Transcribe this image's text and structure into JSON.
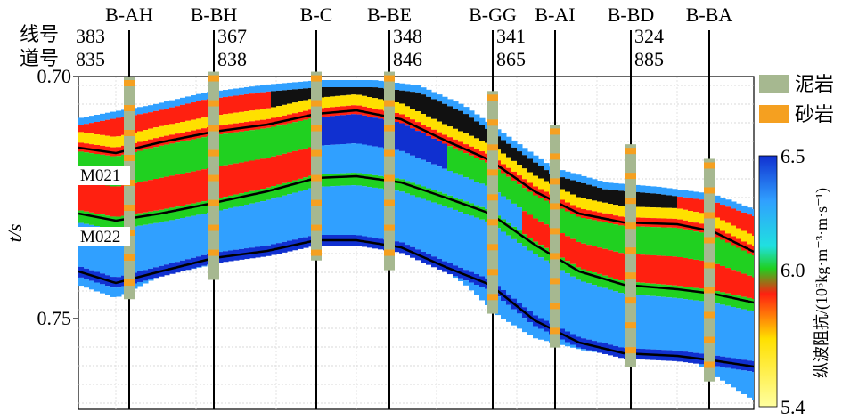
{
  "chart_data": {
    "type": "heatmap",
    "title": "",
    "ylabel": "t/s",
    "y_ticks": [
      {
        "value": 0.7,
        "label": "0.70"
      },
      {
        "value": 0.75,
        "label": "0.75"
      }
    ],
    "ylim": [
      0.7,
      0.77
    ],
    "header_rows": {
      "line_label": "线号",
      "trace_label": "道号"
    },
    "wells": [
      {
        "name": "B-AH",
        "line": "383",
        "trace": "835",
        "top": 0.7,
        "bottom": 0.746
      },
      {
        "name": "B-BH",
        "line": "367",
        "trace": "838",
        "top": 0.699,
        "bottom": 0.742
      },
      {
        "name": "B-C",
        "line": "",
        "trace": "",
        "top": 0.699,
        "bottom": 0.738
      },
      {
        "name": "B-BE",
        "line": "348",
        "trace": "846",
        "top": 0.699,
        "bottom": 0.74
      },
      {
        "name": "B-GG",
        "line": "341",
        "trace": "865",
        "top": 0.703,
        "bottom": 0.749
      },
      {
        "name": "B-AI",
        "line": "",
        "trace": "",
        "top": 0.71,
        "bottom": 0.756
      },
      {
        "name": "B-BD",
        "line": "324",
        "trace": "885",
        "top": 0.714,
        "bottom": 0.76
      },
      {
        "name": "B-BA",
        "line": "",
        "trace": "",
        "top": 0.717,
        "bottom": 0.763
      }
    ],
    "horizons": [
      {
        "name": "M021",
        "label": "M021"
      },
      {
        "name": "M022",
        "label": "M022"
      }
    ],
    "lithology_legend": [
      {
        "name": "泥岩",
        "color": "#a6b890"
      },
      {
        "name": "砂岩",
        "color": "#f5a020"
      }
    ],
    "colorbar": {
      "label": "纵波阻抗/(10⁶kg·m⁻³·m·s⁻¹)",
      "min": 5.4,
      "max": 6.5,
      "ticks": [
        {
          "value": 6.5,
          "label": "6.5"
        },
        {
          "value": 6.0,
          "label": "6.0"
        },
        {
          "value": 5.4,
          "label": "5.4"
        }
      ],
      "stops": [
        {
          "value": 6.5,
          "color": "#1030d0"
        },
        {
          "value": 6.3,
          "color": "#30a0ff"
        },
        {
          "value": 6.1,
          "color": "#20e0e0"
        },
        {
          "value": 6.0,
          "color": "#20d020"
        },
        {
          "value": 5.9,
          "color": "#ff2010"
        },
        {
          "value": 5.7,
          "color": "#ffe000"
        },
        {
          "value": 5.4,
          "color": "#ffffa0"
        }
      ]
    },
    "grid": true
  }
}
